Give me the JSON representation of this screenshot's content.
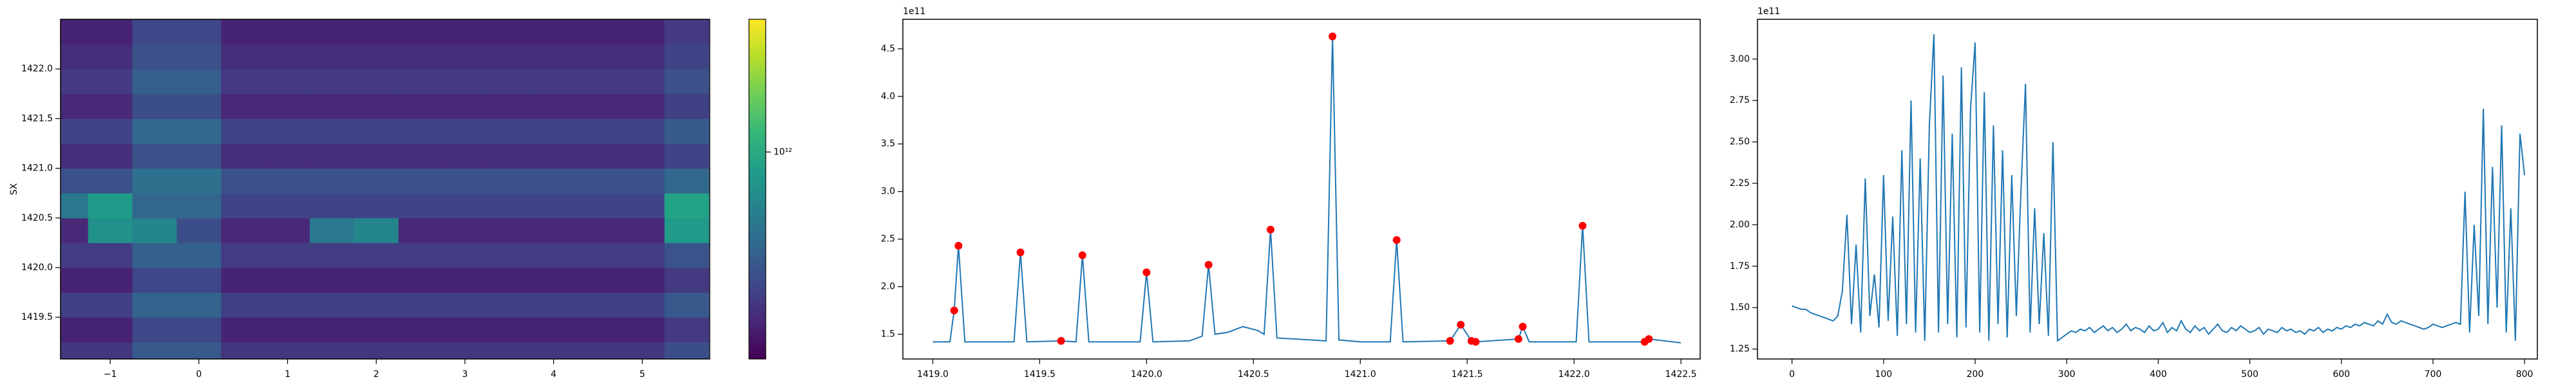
{
  "chart_data": [
    {
      "type": "heatmap",
      "ylabel": "SX",
      "colormap": "viridis",
      "color_scale": "log",
      "x": [
        -1.5,
        -1.0,
        -0.5,
        0.0,
        0.5,
        1.0,
        1.5,
        2.0,
        2.5,
        3.0,
        3.5,
        4.0,
        4.5,
        5.0,
        5.5
      ],
      "y": [
        1419.125,
        1419.375,
        1419.625,
        1419.875,
        1420.125,
        1420.375,
        1420.625,
        1420.875,
        1421.125,
        1421.375,
        1421.625,
        1421.875,
        1422.125,
        1422.375
      ],
      "z": [
        [
          220000000000.0,
          220000000000.0,
          330000000000.0,
          330000000000.0,
          220000000000.0,
          220000000000.0,
          220000000000.0,
          220000000000.0,
          220000000000.0,
          220000000000.0,
          220000000000.0,
          220000000000.0,
          220000000000.0,
          220000000000.0,
          290000000000.0
        ],
        [
          180000000000.0,
          180000000000.0,
          270000000000.0,
          270000000000.0,
          180000000000.0,
          180000000000.0,
          180000000000.0,
          180000000000.0,
          180000000000.0,
          180000000000.0,
          180000000000.0,
          180000000000.0,
          180000000000.0,
          180000000000.0,
          230000000000.0
        ],
        [
          250000000000.0,
          250000000000.0,
          380000000000.0,
          380000000000.0,
          250000000000.0,
          250000000000.0,
          250000000000.0,
          250000000000.0,
          250000000000.0,
          250000000000.0,
          250000000000.0,
          250000000000.0,
          250000000000.0,
          250000000000.0,
          330000000000.0
        ],
        [
          180000000000.0,
          180000000000.0,
          270000000000.0,
          270000000000.0,
          180000000000.0,
          180000000000.0,
          180000000000.0,
          180000000000.0,
          180000000000.0,
          180000000000.0,
          180000000000.0,
          180000000000.0,
          180000000000.0,
          180000000000.0,
          230000000000.0
        ],
        [
          240000000000.0,
          240000000000.0,
          360000000000.0,
          360000000000.0,
          240000000000.0,
          240000000000.0,
          240000000000.0,
          240000000000.0,
          240000000000.0,
          240000000000.0,
          240000000000.0,
          240000000000.0,
          240000000000.0,
          240000000000.0,
          310000000000.0
        ],
        [
          190000000000.0,
          700000000000.0,
          600000000000.0,
          290000000000.0,
          190000000000.0,
          190000000000.0,
          500000000000.0,
          600000000000.0,
          190000000000.0,
          190000000000.0,
          190000000000.0,
          190000000000.0,
          190000000000.0,
          190000000000.0,
          800000000000.0
        ],
        [
          500000000000.0,
          800000000000.0,
          390000000000.0,
          390000000000.0,
          260000000000.0,
          260000000000.0,
          260000000000.0,
          260000000000.0,
          260000000000.0,
          260000000000.0,
          260000000000.0,
          260000000000.0,
          260000000000.0,
          260000000000.0,
          900000000000.0
        ],
        [
          300000000000.0,
          300000000000.0,
          450000000000.0,
          450000000000.0,
          300000000000.0,
          300000000000.0,
          300000000000.0,
          300000000000.0,
          300000000000.0,
          300000000000.0,
          300000000000.0,
          300000000000.0,
          300000000000.0,
          300000000000.0,
          390000000000.0
        ],
        [
          200000000000.0,
          200000000000.0,
          300000000000.0,
          300000000000.0,
          200000000000.0,
          200000000000.0,
          200000000000.0,
          200000000000.0,
          200000000000.0,
          200000000000.0,
          200000000000.0,
          200000000000.0,
          200000000000.0,
          200000000000.0,
          260000000000.0
        ],
        [
          260000000000.0,
          260000000000.0,
          390000000000.0,
          390000000000.0,
          260000000000.0,
          260000000000.0,
          260000000000.0,
          260000000000.0,
          260000000000.0,
          260000000000.0,
          260000000000.0,
          260000000000.0,
          260000000000.0,
          260000000000.0,
          340000000000.0
        ],
        [
          190000000000.0,
          190000000000.0,
          290000000000.0,
          290000000000.0,
          190000000000.0,
          190000000000.0,
          190000000000.0,
          190000000000.0,
          190000000000.0,
          190000000000.0,
          190000000000.0,
          190000000000.0,
          190000000000.0,
          190000000000.0,
          250000000000.0
        ],
        [
          230000000000.0,
          230000000000.0,
          350000000000.0,
          350000000000.0,
          230000000000.0,
          230000000000.0,
          230000000000.0,
          230000000000.0,
          230000000000.0,
          230000000000.0,
          230000000000.0,
          230000000000.0,
          230000000000.0,
          230000000000.0,
          300000000000.0
        ],
        [
          200000000000.0,
          200000000000.0,
          300000000000.0,
          300000000000.0,
          200000000000.0,
          200000000000.0,
          200000000000.0,
          200000000000.0,
          200000000000.0,
          200000000000.0,
          200000000000.0,
          200000000000.0,
          200000000000.0,
          200000000000.0,
          260000000000.0
        ],
        [
          180000000000.0,
          180000000000.0,
          270000000000.0,
          270000000000.0,
          180000000000.0,
          180000000000.0,
          180000000000.0,
          180000000000.0,
          180000000000.0,
          180000000000.0,
          180000000000.0,
          180000000000.0,
          180000000000.0,
          180000000000.0,
          230000000000.0
        ]
      ],
      "xlim": [
        -1.56,
        5.76
      ],
      "ylim": [
        1419.08,
        1422.5
      ],
      "xticks": [
        {
          "value": -1,
          "label": "−1"
        },
        0,
        1,
        2,
        3,
        4,
        5
      ],
      "yticks": [
        1419.5,
        {
          "value": 1420,
          "label": "1420.0"
        },
        1420.5,
        {
          "value": 1421,
          "label": "1421.0"
        },
        1421.5,
        {
          "value": 1422,
          "label": "1422.0"
        }
      ],
      "clim": [
        130000000000.0,
        3700000000000.0
      ],
      "cticks": [
        {
          "value": 1000000000000.0,
          "label": "10¹²"
        }
      ]
    },
    {
      "type": "line",
      "color": "#1f77b4",
      "y_offset_label": "1e11",
      "x": [
        1419.0,
        1419.08,
        1419.1,
        1419.12,
        1419.15,
        1419.38,
        1419.41,
        1419.44,
        1419.6,
        1419.67,
        1419.7,
        1419.73,
        1419.97,
        1420.0,
        1420.03,
        1420.2,
        1420.26,
        1420.29,
        1420.32,
        1420.38,
        1420.45,
        1420.52,
        1420.55,
        1420.58,
        1420.61,
        1420.7,
        1420.84,
        1420.87,
        1420.9,
        1421.0,
        1421.14,
        1421.17,
        1421.2,
        1421.42,
        1421.47,
        1421.52,
        1421.54,
        1421.74,
        1421.76,
        1421.79,
        1422.01,
        1422.04,
        1422.07,
        1422.33,
        1422.35,
        1422.5
      ],
      "values": [
        1.42,
        1.42,
        1.75,
        2.43,
        1.42,
        1.42,
        2.36,
        1.42,
        1.43,
        1.42,
        2.33,
        1.42,
        1.42,
        2.15,
        1.42,
        1.43,
        1.48,
        2.23,
        1.5,
        1.52,
        1.58,
        1.54,
        1.5,
        2.6,
        1.46,
        1.45,
        1.43,
        4.63,
        1.44,
        1.42,
        1.42,
        2.49,
        1.42,
        1.43,
        1.6,
        1.43,
        1.42,
        1.45,
        1.58,
        1.42,
        1.42,
        2.64,
        1.42,
        1.42,
        1.45,
        1.41
      ],
      "markers": {
        "color": "red",
        "x": [
          1419.1,
          1419.12,
          1419.41,
          1419.6,
          1419.7,
          1420.0,
          1420.29,
          1420.58,
          1420.87,
          1421.17,
          1421.42,
          1421.47,
          1421.52,
          1421.54,
          1421.74,
          1421.76,
          1422.04,
          1422.33,
          1422.35
        ],
        "values": [
          1.75,
          2.43,
          2.36,
          1.43,
          2.33,
          2.15,
          2.23,
          2.6,
          4.63,
          2.49,
          1.43,
          1.6,
          1.43,
          1.42,
          1.45,
          1.58,
          2.64,
          1.42,
          1.45
        ]
      },
      "xlim": [
        1418.86,
        1422.59
      ],
      "ylim": [
        1.24,
        4.81
      ],
      "xticks": [
        {
          "value": 1419,
          "label": "1419.0"
        },
        1419.5,
        {
          "value": 1420,
          "label": "1420.0"
        },
        1420.5,
        {
          "value": 1421,
          "label": "1421.0"
        },
        1421.5,
        {
          "value": 1422,
          "label": "1422.0"
        },
        1422.5
      ],
      "yticks": [
        1.5,
        {
          "value": 2,
          "label": "2.0"
        },
        2.5,
        {
          "value": 3,
          "label": "3.0"
        },
        3.5,
        {
          "value": 4,
          "label": "4.0"
        },
        4.5
      ]
    },
    {
      "type": "line",
      "color": "#1f77b4",
      "y_offset_label": "1e11",
      "x": [
        0,
        5,
        10,
        15,
        20,
        25,
        30,
        35,
        40,
        45,
        50,
        55,
        60,
        65,
        70,
        75,
        80,
        85,
        90,
        95,
        100,
        105,
        110,
        115,
        120,
        125,
        130,
        135,
        140,
        145,
        150,
        155,
        160,
        165,
        170,
        175,
        180,
        185,
        190,
        195,
        200,
        205,
        210,
        215,
        220,
        225,
        230,
        235,
        240,
        245,
        250,
        255,
        260,
        265,
        270,
        275,
        280,
        285,
        290,
        295,
        300,
        305,
        310,
        315,
        320,
        325,
        330,
        335,
        340,
        345,
        350,
        355,
        360,
        365,
        370,
        375,
        380,
        385,
        390,
        395,
        400,
        405,
        410,
        415,
        420,
        425,
        430,
        435,
        440,
        445,
        450,
        455,
        460,
        465,
        470,
        475,
        480,
        485,
        490,
        495,
        500,
        505,
        510,
        515,
        520,
        525,
        530,
        535,
        540,
        545,
        550,
        555,
        560,
        565,
        570,
        575,
        580,
        585,
        590,
        595,
        600,
        605,
        610,
        615,
        620,
        625,
        630,
        635,
        640,
        645,
        650,
        655,
        660,
        665,
        670,
        675,
        680,
        685,
        690,
        695,
        700,
        705,
        710,
        715,
        720,
        725,
        730,
        735,
        740,
        745,
        750,
        755,
        760,
        765,
        770,
        775,
        780,
        785,
        790,
        795,
        800
      ],
      "values": [
        1.51,
        1.5,
        1.49,
        1.49,
        1.47,
        1.46,
        1.45,
        1.44,
        1.43,
        1.42,
        1.45,
        1.6,
        2.06,
        1.4,
        1.88,
        1.35,
        2.28,
        1.45,
        1.7,
        1.38,
        2.3,
        1.42,
        2.05,
        1.33,
        2.45,
        1.4,
        2.75,
        1.35,
        2.4,
        1.3,
        2.6,
        3.15,
        1.35,
        2.9,
        1.4,
        2.55,
        1.32,
        2.95,
        1.38,
        2.7,
        3.1,
        1.35,
        2.8,
        1.3,
        2.6,
        1.4,
        2.45,
        1.32,
        2.3,
        1.45,
        2.2,
        2.85,
        1.35,
        2.1,
        1.4,
        1.95,
        1.33,
        2.5,
        1.3,
        1.32,
        1.34,
        1.36,
        1.35,
        1.37,
        1.36,
        1.38,
        1.35,
        1.37,
        1.39,
        1.36,
        1.38,
        1.35,
        1.37,
        1.4,
        1.36,
        1.38,
        1.37,
        1.35,
        1.39,
        1.36,
        1.37,
        1.41,
        1.35,
        1.38,
        1.36,
        1.42,
        1.37,
        1.35,
        1.39,
        1.36,
        1.38,
        1.34,
        1.37,
        1.4,
        1.36,
        1.35,
        1.38,
        1.36,
        1.39,
        1.37,
        1.35,
        1.36,
        1.38,
        1.34,
        1.37,
        1.36,
        1.35,
        1.38,
        1.36,
        1.37,
        1.35,
        1.36,
        1.34,
        1.37,
        1.36,
        1.38,
        1.35,
        1.37,
        1.36,
        1.38,
        1.37,
        1.39,
        1.38,
        1.4,
        1.39,
        1.41,
        1.4,
        1.39,
        1.42,
        1.4,
        1.46,
        1.41,
        1.4,
        1.42,
        1.41,
        1.4,
        1.39,
        1.38,
        1.37,
        1.38,
        1.4,
        1.39,
        1.38,
        1.39,
        1.4,
        1.41,
        1.4,
        2.2,
        1.35,
        2.0,
        1.45,
        2.7,
        1.4,
        2.35,
        1.5,
        2.6,
        1.35,
        2.1,
        1.3,
        2.55,
        2.3
      ],
      "xlim": [
        -37.7,
        814
      ],
      "ylim": [
        1.19,
        3.24
      ],
      "xticks": [
        0,
        100,
        200,
        300,
        400,
        500,
        600,
        700,
        800
      ],
      "yticks": [
        1.25,
        {
          "value": 1.5,
          "label": "1.50"
        },
        1.75,
        {
          "value": 2,
          "label": "2.00"
        },
        2.25,
        {
          "value": 2.5,
          "label": "2.50"
        },
        2.75,
        {
          "value": 3,
          "label": "3.00"
        }
      ]
    }
  ]
}
